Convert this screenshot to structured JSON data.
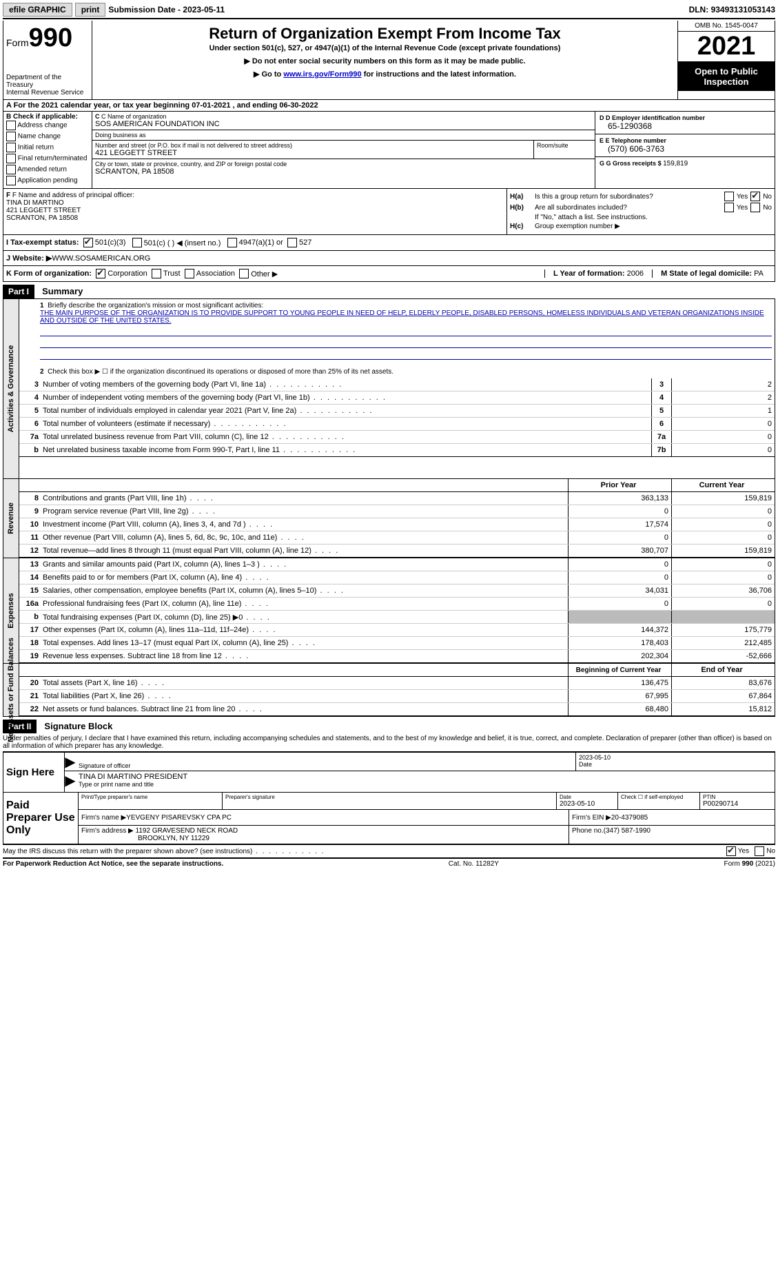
{
  "topbar": {
    "efile": "efile GRAPHIC",
    "print": "print",
    "subdate_lbl": "Submission Date - ",
    "subdate": "2023-05-11",
    "dln_lbl": "DLN: ",
    "dln": "93493131053143"
  },
  "header": {
    "form": "Form",
    "num": "990",
    "dept1": "Department of the Treasury",
    "dept2": "Internal Revenue Service",
    "title": "Return of Organization Exempt From Income Tax",
    "sub": "Under section 501(c), 527, or 4947(a)(1) of the Internal Revenue Code (except private foundations)",
    "l1": "▶ Do not enter social security numbers on this form as it may be made public.",
    "l2a": "▶ Go to ",
    "l2link": "www.irs.gov/Form990",
    "l2b": " for instructions and the latest information.",
    "omb": "OMB No. 1545-0047",
    "year": "2021",
    "open": "Open to Public Inspection"
  },
  "rowA": "A For the 2021 calendar year, or tax year beginning 07-01-2021   , and ending 06-30-2022",
  "colB": {
    "hdr": "B Check if applicable:",
    "items": [
      "Address change",
      "Name change",
      "Initial return",
      "Final return/terminated",
      "Amended return",
      "Application pending"
    ]
  },
  "colC": {
    "c_lbl": "C Name of organization",
    "c_val": "SOS AMERICAN FOUNDATION INC",
    "dba_lbl": "Doing business as",
    "dba_val": "",
    "addr_lbl": "Number and street (or P.O. box if mail is not delivered to street address)",
    "room_lbl": "Room/suite",
    "addr_val": "421 LEGGETT STREET",
    "city_lbl": "City or town, state or province, country, and ZIP or foreign postal code",
    "city_val": "SCRANTON, PA  18508"
  },
  "colD": {
    "d_lbl": "D Employer identification number",
    "d_val": "65-1290368",
    "e_lbl": "E Telephone number",
    "e_val": "(570) 606-3763",
    "g_lbl": "G Gross receipts $ ",
    "g_val": "159,819"
  },
  "colF": {
    "lbl": "F Name and address of principal officer:",
    "name": "TINA DI MARTINO",
    "addr1": "421 LEGGETT STREET",
    "addr2": "SCRANTON, PA  18508"
  },
  "colH": {
    "a_lbl": "H(a)",
    "a_txt": "Is this a group return for subordinates?",
    "b_lbl": "H(b)",
    "b_txt": "Are all subordinates included?",
    "note": "If \"No,\" attach a list. See instructions.",
    "c_lbl": "H(c)",
    "c_txt": "Group exemption number ▶",
    "yes": "Yes",
    "no": "No"
  },
  "rowI": {
    "lbl": "I   Tax-exempt status:",
    "o1": "501(c)(3)",
    "o2": "501(c) (  ) ◀ (insert no.)",
    "o3": "4947(a)(1) or",
    "o4": "527"
  },
  "rowJ": {
    "lbl": "J   Website: ▶  ",
    "val": "WWW.SOSAMERICAN.ORG"
  },
  "rowK": {
    "lbl": "K Form of organization:",
    "o1": "Corporation",
    "o2": "Trust",
    "o3": "Association",
    "o4": "Other ▶",
    "l_lbl": "L Year of formation: ",
    "l_val": "2006",
    "m_lbl": "M State of legal domicile: ",
    "m_val": "PA"
  },
  "part1": {
    "hdr": "Part I",
    "title": "Summary",
    "l1_lbl": "Briefly describe the organization's mission or most significant activities:",
    "l1_val": "THE MAIN PURPOSE OF THE ORGANIZATION IS TO PROVIDE SUPPORT TO YOUNG PEOPLE IN NEED OF HELP, ELDERLY PEOPLE, DISABLED PERSONS, HOMELESS INDIVIDUALS AND VETERAN ORGANIZATIONS INSIDE AND OUTSIDE OF THE UNITED STATES.",
    "l2": "Check this box ▶ ☐ if the organization discontinued its operations or disposed of more than 25% of its net assets.",
    "vtab1": "Activities & Governance",
    "vtab2": "Revenue",
    "vtab3": "Expenses",
    "vtab4": "Net Assets or Fund Balances",
    "prior_hdr": "Prior Year",
    "curr_hdr": "Current Year",
    "begin_hdr": "Beginning of Current Year",
    "end_hdr": "End of Year",
    "rows_gov": [
      {
        "n": "3",
        "d": "Number of voting members of the governing body (Part VI, line 1a)",
        "b": "3",
        "v": "2"
      },
      {
        "n": "4",
        "d": "Number of independent voting members of the governing body (Part VI, line 1b)",
        "b": "4",
        "v": "2"
      },
      {
        "n": "5",
        "d": "Total number of individuals employed in calendar year 2021 (Part V, line 2a)",
        "b": "5",
        "v": "1"
      },
      {
        "n": "6",
        "d": "Total number of volunteers (estimate if necessary)",
        "b": "6",
        "v": "0"
      },
      {
        "n": "7a",
        "d": "Total unrelated business revenue from Part VIII, column (C), line 12",
        "b": "7a",
        "v": "0"
      },
      {
        "n": "b",
        "d": "Net unrelated business taxable income from Form 990-T, Part I, line 11",
        "b": "7b",
        "v": "0"
      }
    ],
    "rows_rev": [
      {
        "n": "8",
        "d": "Contributions and grants (Part VIII, line 1h)",
        "p": "363,133",
        "c": "159,819"
      },
      {
        "n": "9",
        "d": "Program service revenue (Part VIII, line 2g)",
        "p": "0",
        "c": "0"
      },
      {
        "n": "10",
        "d": "Investment income (Part VIII, column (A), lines 3, 4, and 7d )",
        "p": "17,574",
        "c": "0"
      },
      {
        "n": "11",
        "d": "Other revenue (Part VIII, column (A), lines 5, 6d, 8c, 9c, 10c, and 11e)",
        "p": "0",
        "c": "0"
      },
      {
        "n": "12",
        "d": "Total revenue—add lines 8 through 11 (must equal Part VIII, column (A), line 12)",
        "p": "380,707",
        "c": "159,819"
      }
    ],
    "rows_exp": [
      {
        "n": "13",
        "d": "Grants and similar amounts paid (Part IX, column (A), lines 1–3 )",
        "p": "0",
        "c": "0"
      },
      {
        "n": "14",
        "d": "Benefits paid to or for members (Part IX, column (A), line 4)",
        "p": "0",
        "c": "0"
      },
      {
        "n": "15",
        "d": "Salaries, other compensation, employee benefits (Part IX, column (A), lines 5–10)",
        "p": "34,031",
        "c": "36,706"
      },
      {
        "n": "16a",
        "d": "Professional fundraising fees (Part IX, column (A), line 11e)",
        "p": "0",
        "c": "0"
      },
      {
        "n": "b",
        "d": "Total fundraising expenses (Part IX, column (D), line 25) ▶0",
        "p": "gray",
        "c": "gray"
      },
      {
        "n": "17",
        "d": "Other expenses (Part IX, column (A), lines 11a–11d, 11f–24e)",
        "p": "144,372",
        "c": "175,779"
      },
      {
        "n": "18",
        "d": "Total expenses. Add lines 13–17 (must equal Part IX, column (A), line 25)",
        "p": "178,403",
        "c": "212,485"
      },
      {
        "n": "19",
        "d": "Revenue less expenses. Subtract line 18 from line 12",
        "p": "202,304",
        "c": "-52,666"
      }
    ],
    "rows_net": [
      {
        "n": "20",
        "d": "Total assets (Part X, line 16)",
        "p": "136,475",
        "c": "83,676"
      },
      {
        "n": "21",
        "d": "Total liabilities (Part X, line 26)",
        "p": "67,995",
        "c": "67,864"
      },
      {
        "n": "22",
        "d": "Net assets or fund balances. Subtract line 21 from line 20",
        "p": "68,480",
        "c": "15,812"
      }
    ]
  },
  "part2": {
    "hdr": "Part II",
    "title": "Signature Block",
    "decl": "Under penalties of perjury, I declare that I have examined this return, including accompanying schedules and statements, and to the best of my knowledge and belief, it is true, correct, and complete. Declaration of preparer (other than officer) is based on all information of which preparer has any knowledge.",
    "sign_here": "Sign Here",
    "sig_officer": "Signature of officer",
    "sig_date": "2023-05-10",
    "date_lbl": "Date",
    "name_val": "TINA DI MARTINO  PRESIDENT",
    "name_lbl": "Type or print name and title",
    "prep_use": "Paid Preparer Use Only",
    "pt_name_lbl": "Print/Type preparer's name",
    "pt_sig_lbl": "Preparer's signature",
    "pt_date_lbl": "Date",
    "pt_date": "2023-05-10",
    "pt_check_lbl": "Check ☐ if self-employed",
    "ptin_lbl": "PTIN",
    "ptin": "P00290714",
    "firm_name_lbl": "Firm's name    ▶ ",
    "firm_name": "YEVGENY PISAREVSKY CPA PC",
    "firm_ein_lbl": "Firm's EIN ▶ ",
    "firm_ein": "20-4379085",
    "firm_addr_lbl": "Firm's address ▶ ",
    "firm_addr1": "1192 GRAVESEND NECK ROAD",
    "firm_addr2": "BROOKLYN, NY  11229",
    "phone_lbl": "Phone no. ",
    "phone": "(347) 587-1990",
    "discuss": "May the IRS discuss this return with the preparer shown above? (see instructions)",
    "yes": "Yes",
    "no": "No"
  },
  "footer": {
    "l": "For Paperwork Reduction Act Notice, see the separate instructions.",
    "c": "Cat. No. 11282Y",
    "r": "Form 990 (2021)"
  }
}
